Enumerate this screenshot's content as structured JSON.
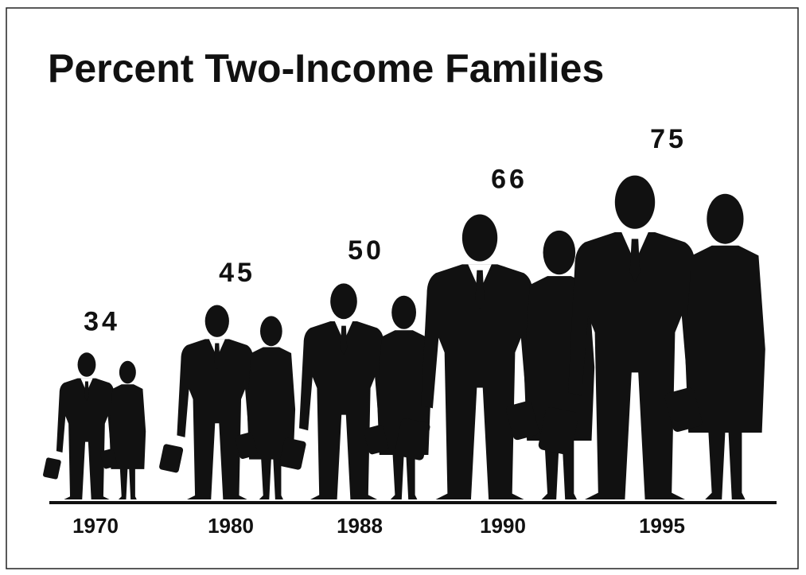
{
  "chart_data": {
    "type": "pictograph",
    "title": "Percent Two-Income Families",
    "categories": [
      "1970",
      "1980",
      "1988",
      "1990",
      "1995"
    ],
    "values": [
      34,
      45,
      50,
      66,
      75
    ],
    "color": "#111111"
  }
}
